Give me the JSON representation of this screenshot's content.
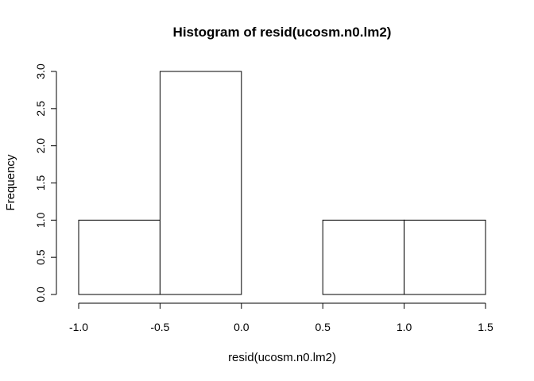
{
  "chart_data": {
    "type": "bar",
    "title": "Histogram of resid(ucosm.n0.lm2)",
    "xlabel": "resid(ucosm.n0.lm2)",
    "ylabel": "Frequency",
    "bins": [
      {
        "from": -1.0,
        "to": -0.5,
        "count": 1
      },
      {
        "from": -0.5,
        "to": 0.0,
        "count": 3
      },
      {
        "from": 0.0,
        "to": 0.5,
        "count": 0
      },
      {
        "from": 0.5,
        "to": 1.0,
        "count": 1
      },
      {
        "from": 1.0,
        "to": 1.5,
        "count": 1
      }
    ],
    "xlim": [
      -1.0,
      1.5
    ],
    "ylim": [
      0,
      3.0
    ],
    "x_ticks": [
      "-1.0",
      "-0.5",
      "0.0",
      "0.5",
      "1.0",
      "1.5"
    ],
    "y_ticks": [
      "0.0",
      "0.5",
      "1.0",
      "1.5",
      "2.0",
      "2.5",
      "3.0"
    ],
    "grid": false,
    "colors": {
      "bar_fill": "#ffffff",
      "bar_stroke": "#000000"
    }
  }
}
